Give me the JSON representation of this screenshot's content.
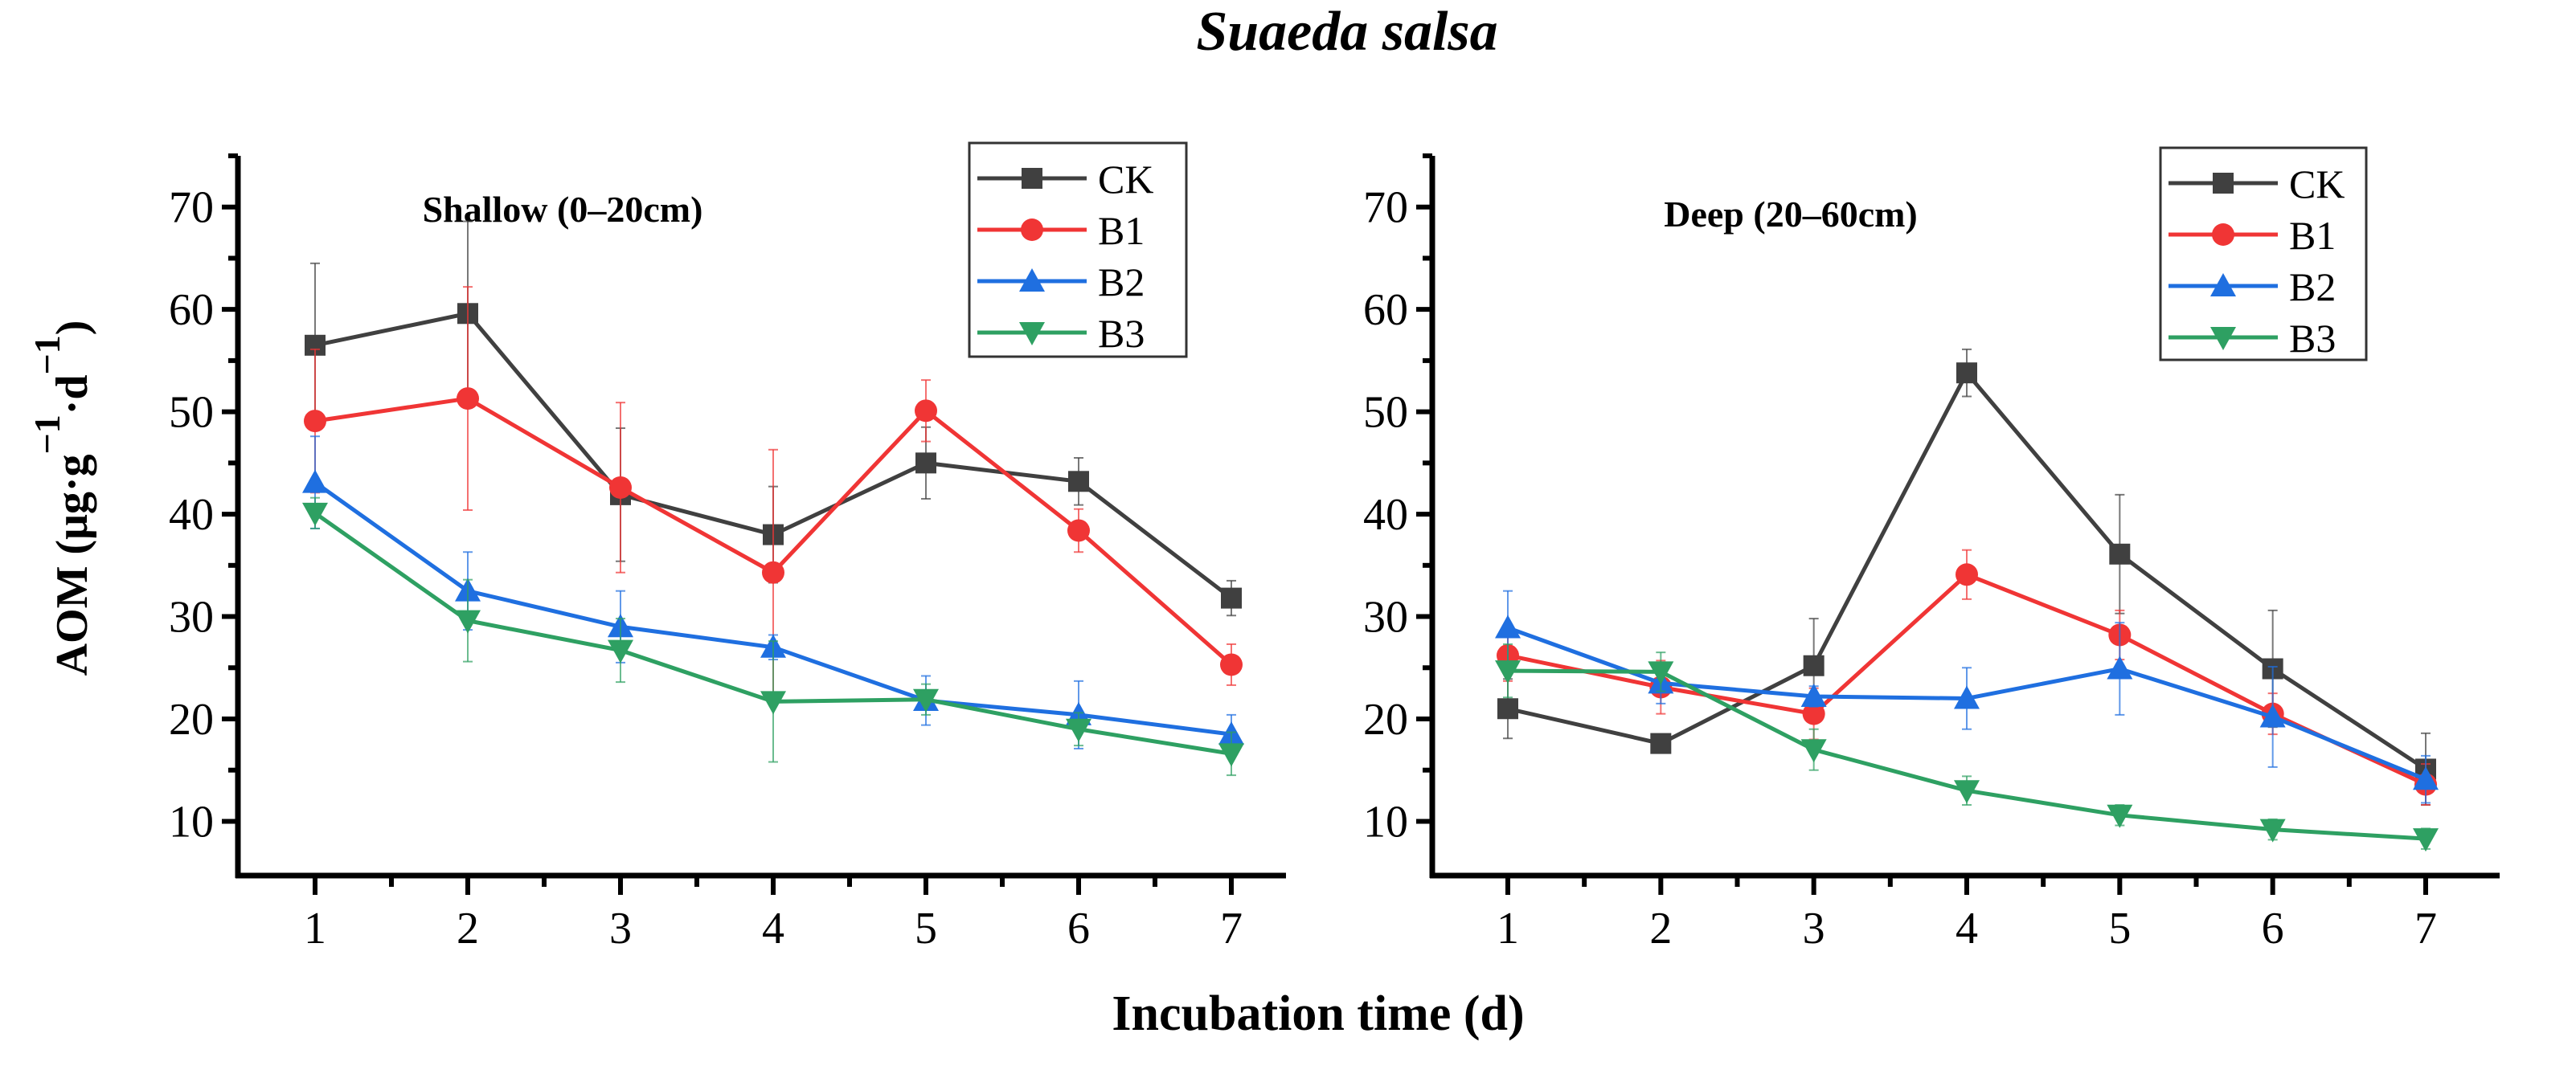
{
  "chart_data": {
    "title": "Suaeda salsa",
    "xlabel": "Incubation time (d)",
    "ylabel": "AOM (μg·g⁻¹·d⁻¹)",
    "ylabel_parts": {
      "main": "AOM (μg·g",
      "sup1": "−1",
      "mid": "·d",
      "sup2": "−1",
      "end": ")"
    },
    "type": "line",
    "series_colors": {
      "CK": "#404040",
      "B1": "#f03535",
      "B2": "#1f6fe0",
      "B3": "#2ea062"
    },
    "series_markers": {
      "CK": "square",
      "B1": "circle",
      "B2": "triangle-up",
      "B3": "triangle-down"
    },
    "panels": [
      {
        "title": "Shallow (0–20cm)",
        "x": [
          1,
          2,
          3,
          4,
          5,
          6,
          7
        ],
        "xticks": [
          "1",
          "2",
          "3",
          "4",
          "5",
          "6",
          "7"
        ],
        "yticks": [
          "10",
          "20",
          "30",
          "40",
          "50",
          "60",
          "70"
        ],
        "ylim": [
          4.7,
          75
        ],
        "legend": "top-right",
        "series": [
          {
            "name": "CK",
            "values": [
              56.5,
              59.6,
              41.9,
              38.0,
              45.0,
              43.2,
              31.8
            ],
            "errors": [
              8.0,
              9.0,
              6.5,
              4.7,
              3.5,
              2.3,
              1.7
            ]
          },
          {
            "name": "B1",
            "values": [
              49.1,
              51.3,
              42.6,
              34.3,
              50.1,
              38.4,
              25.3
            ],
            "errors": [
              7.0,
              10.9,
              8.3,
              12.0,
              3.0,
              2.1,
              2.0
            ]
          },
          {
            "name": "B2",
            "values": [
              43.1,
              32.5,
              29.0,
              27.0,
              21.8,
              20.4,
              18.5
            ],
            "errors": [
              4.5,
              3.8,
              3.5,
              1.2,
              2.4,
              3.3,
              1.9
            ]
          },
          {
            "name": "B3",
            "values": [
              40.1,
              29.6,
              26.7,
              21.7,
              21.9,
              19.0,
              16.6
            ],
            "errors": [
              1.5,
              4.0,
              3.1,
              5.9,
              1.5,
              1.6,
              2.1
            ]
          }
        ]
      },
      {
        "title": "Deep (20–60cm)",
        "x": [
          1,
          2,
          3,
          4,
          5,
          6,
          7
        ],
        "xticks": [
          "1",
          "2",
          "3",
          "4",
          "5",
          "6",
          "7"
        ],
        "yticks": [
          "10",
          "20",
          "30",
          "40",
          "50",
          "60",
          "70"
        ],
        "ylim": [
          4.7,
          75
        ],
        "legend": "top-right",
        "series": [
          {
            "name": "CK",
            "values": [
              21.0,
              17.6,
              25.2,
              53.8,
              36.1,
              24.9,
              15.1
            ],
            "errors": [
              2.9,
              0.9,
              4.6,
              2.3,
              5.8,
              5.7,
              3.5
            ]
          },
          {
            "name": "B1",
            "values": [
              26.2,
              23.1,
              20.5,
              34.1,
              28.2,
              20.5,
              13.6
            ],
            "errors": [
              2.5,
              2.6,
              2.5,
              2.4,
              2.4,
              2.0,
              2.0
            ]
          },
          {
            "name": "B2",
            "values": [
              28.9,
              23.5,
              22.2,
              22.0,
              24.9,
              20.2,
              14.1
            ],
            "errors": [
              3.6,
              2.0,
              1.0,
              3.0,
              4.5,
              4.9,
              2.3
            ]
          },
          {
            "name": "B3",
            "values": [
              24.7,
              24.6,
              17.0,
              13.0,
              10.6,
              9.2,
              8.3
            ],
            "errors": [
              2.6,
              1.9,
              2.0,
              1.4,
              1.0,
              1.0,
              1.0
            ]
          }
        ]
      }
    ]
  }
}
